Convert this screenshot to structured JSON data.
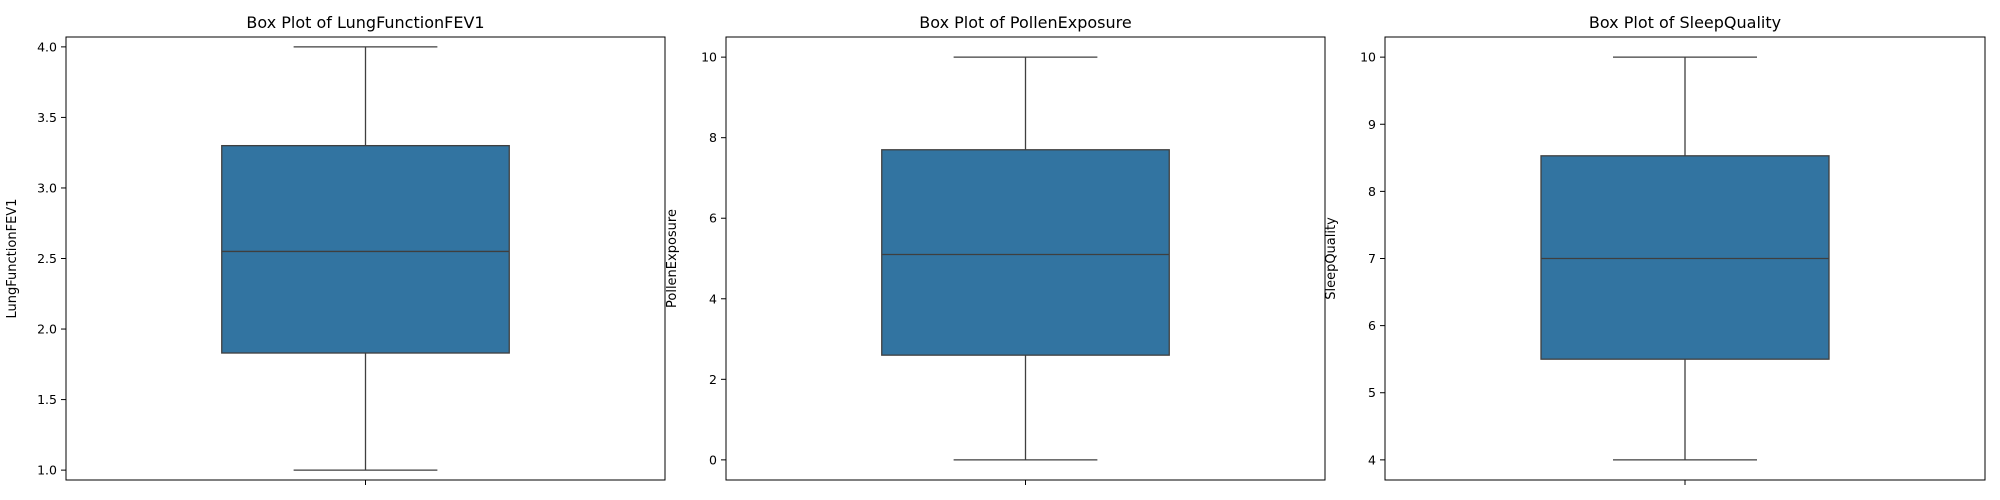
{
  "chart_data": [
    {
      "type": "box",
      "title": "Box Plot of LungFunctionFEV1",
      "ylabel": "LungFunctionFEV1",
      "xlabel": "",
      "ylim": [
        0.93,
        4.07
      ],
      "yticks": [
        1.0,
        1.5,
        2.0,
        2.5,
        3.0,
        3.5,
        4.0
      ],
      "ytick_labels": [
        "1.0",
        "1.5",
        "2.0",
        "2.5",
        "3.0",
        "3.5",
        "4.0"
      ],
      "box": {
        "whisker_low": 1.0,
        "q1": 1.83,
        "median": 2.55,
        "q3": 3.3,
        "whisker_high": 4.0
      },
      "color": "#3274a1"
    },
    {
      "type": "box",
      "title": "Box Plot of PollenExposure",
      "ylabel": "PollenExposure",
      "xlabel": "",
      "ylim": [
        -0.5,
        10.5
      ],
      "yticks": [
        0,
        2,
        4,
        6,
        8,
        10
      ],
      "ytick_labels": [
        "0",
        "2",
        "4",
        "6",
        "8",
        "10"
      ],
      "box": {
        "whisker_low": 0.0,
        "q1": 2.6,
        "median": 5.1,
        "q3": 7.7,
        "whisker_high": 10.0
      },
      "color": "#3274a1"
    },
    {
      "type": "box",
      "title": "Box Plot of SleepQuality",
      "ylabel": "SleepQuality",
      "xlabel": "",
      "ylim": [
        3.7,
        10.3
      ],
      "yticks": [
        4,
        5,
        6,
        7,
        8,
        9,
        10
      ],
      "ytick_labels": [
        "4",
        "5",
        "6",
        "7",
        "8",
        "9",
        "10"
      ],
      "box": {
        "whisker_low": 4.0,
        "q1": 5.5,
        "median": 7.0,
        "q3": 8.53,
        "whisker_high": 10.0
      },
      "color": "#3274a1"
    }
  ]
}
